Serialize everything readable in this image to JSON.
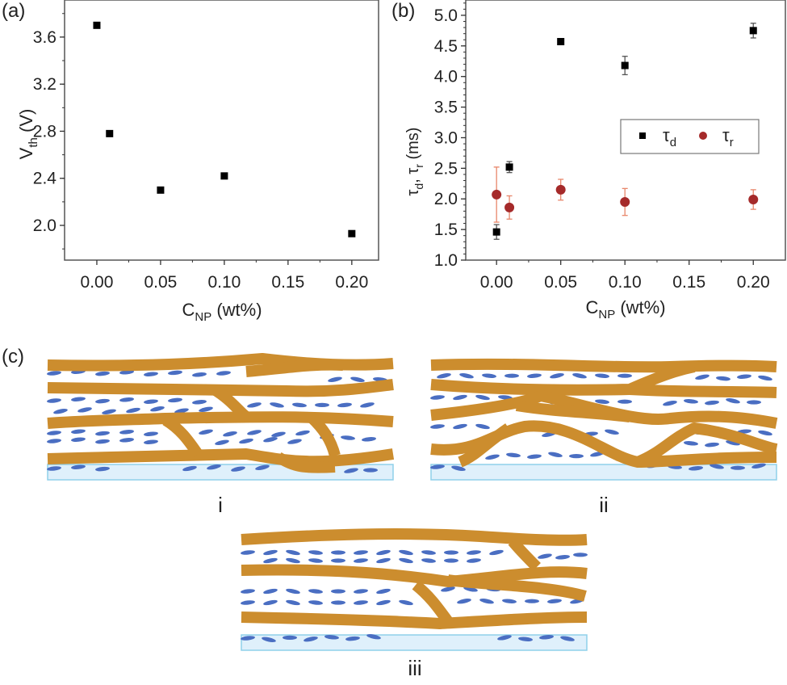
{
  "panels": {
    "a_label": "(a)",
    "b_label": "(b)",
    "c_label": "(c)"
  },
  "chart_data": [
    {
      "id": "a",
      "type": "scatter",
      "title": "",
      "xlabel_main": "C",
      "xlabel_sub": "NP",
      "xlabel_unit": " (wt%)",
      "ylabel_main": "V",
      "ylabel_sub": "th",
      "ylabel_unit": " (V)",
      "xlim": [
        -0.0253,
        0.221
      ],
      "ylim": [
        1.705,
        3.915
      ],
      "xticks": [
        0.0,
        0.05,
        0.1,
        0.15,
        0.2
      ],
      "xtick_labels": [
        "0.00",
        "0.05",
        "0.10",
        "0.15",
        "0.20"
      ],
      "yticks": [
        2.0,
        2.4,
        2.8,
        3.2,
        3.6
      ],
      "ytick_labels": [
        "2.0",
        "2.4",
        "2.8",
        "3.2",
        "3.6"
      ],
      "grid": false,
      "series": [
        {
          "name": "Vth",
          "marker": "square",
          "color": "#000000",
          "x": [
            0.0,
            0.01,
            0.05,
            0.1,
            0.2
          ],
          "y": [
            3.7,
            2.78,
            2.3,
            2.42,
            1.93
          ]
        }
      ]
    },
    {
      "id": "b",
      "type": "scatter",
      "title": "",
      "xlabel_main": "C",
      "xlabel_sub": "NP",
      "xlabel_unit": " (wt%)",
      "ylabel_main": "τ",
      "ylabel_sub1": "d",
      "ylabel_mid": ", τ",
      "ylabel_sub2": "r",
      "ylabel_unit": " (ms)",
      "xlim": [
        -0.024,
        0.225
      ],
      "ylim": [
        1.0,
        5.25
      ],
      "xticks": [
        0.0,
        0.05,
        0.1,
        0.15,
        0.2
      ],
      "xtick_labels": [
        "0.00",
        "0.05",
        "0.10",
        "0.15",
        "0.20"
      ],
      "yticks": [
        1.0,
        1.5,
        2.0,
        2.5,
        3.0,
        3.5,
        4.0,
        4.5,
        5.0
      ],
      "ytick_labels": [
        "1.0",
        "1.5",
        "2.0",
        "2.5",
        "3.0",
        "3.5",
        "4.0",
        "4.5",
        "5.0"
      ],
      "grid": false,
      "legend": {
        "placement": "center-right",
        "entries": [
          {
            "symbol": "τ",
            "sub": "d",
            "marker": "square",
            "color": "#000000"
          },
          {
            "symbol": "τ",
            "sub": "r",
            "marker": "circle",
            "color": "#a52a2a"
          }
        ]
      },
      "series": [
        {
          "name": "τd",
          "marker": "square",
          "color": "#000000",
          "errcolor": "#555555",
          "x": [
            0.0,
            0.01,
            0.05,
            0.1,
            0.2
          ],
          "y": [
            1.46,
            2.52,
            4.57,
            4.18,
            4.75
          ],
          "yerr": [
            0.12,
            0.09,
            0.0,
            0.15,
            0.12
          ]
        },
        {
          "name": "τr",
          "marker": "circle",
          "color": "#a52a2a",
          "errcolor": "#e8866a",
          "x": [
            0.0,
            0.01,
            0.05,
            0.1,
            0.2
          ],
          "y": [
            2.07,
            1.86,
            2.15,
            1.95,
            1.99
          ],
          "yerr": [
            0.45,
            0.19,
            0.17,
            0.22,
            0.16
          ]
        }
      ]
    }
  ],
  "diagram": {
    "description": "Schematic of fibrous polymer network (orange) with aligned liquid crystal molecules (blue ellipses) on a substrate (light blue)",
    "colors": {
      "fiber": "#cc8d2e",
      "lc": "#4a6ec2",
      "substrate_fill": "#dff0fb",
      "substrate_stroke": "#8fd0ea"
    },
    "sub_labels": [
      "i",
      "ii",
      "iii"
    ]
  }
}
